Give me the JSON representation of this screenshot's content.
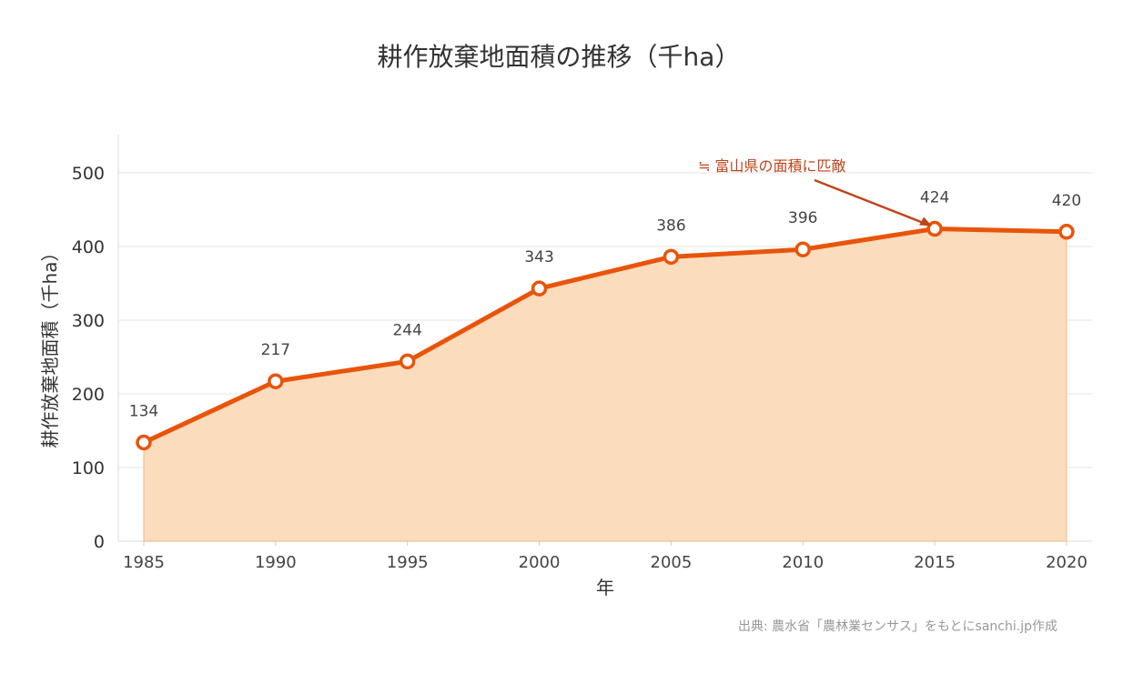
{
  "chart_data": {
    "type": "area",
    "title": "耕作放棄地面積の推移（千ha）",
    "xlabel": "年",
    "ylabel": "耕作放棄地面積（千ha）",
    "x": [
      1985,
      1990,
      1995,
      2000,
      2005,
      2010,
      2015,
      2020
    ],
    "values": [
      134,
      217,
      244,
      343,
      386,
      396,
      424,
      420
    ],
    "yticks": [
      0,
      100,
      200,
      300,
      400,
      500
    ],
    "ylim": [
      0,
      552
    ],
    "grid": "horizontal",
    "annotation": {
      "text": "≒ 富山県の面積に匹敵",
      "x": 2015,
      "y": 424
    },
    "source": "出典: 農水省「農林業センサス」をもとにsanchi.jp作成",
    "colors": {
      "line": "#e8540a",
      "fill": "#fbdcbd",
      "annotation": "#c0441a"
    }
  }
}
